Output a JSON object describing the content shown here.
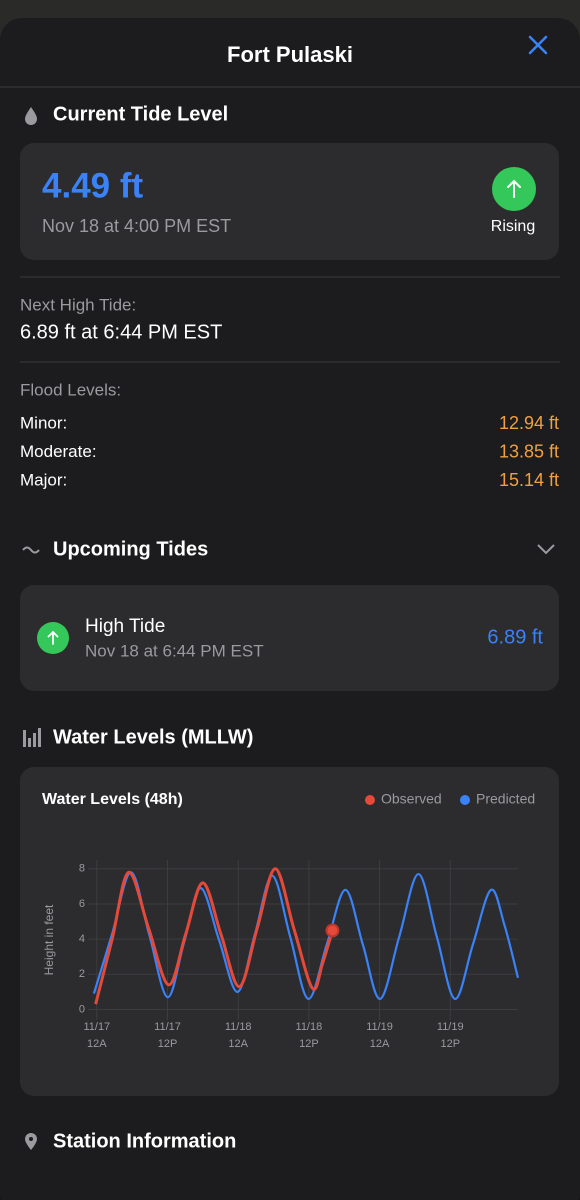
{
  "header": {
    "title": "Fort Pulaski"
  },
  "current": {
    "heading": "Current Tide Level",
    "level": "4.49 ft",
    "time": "Nov 18 at 4:00 PM EST",
    "trend": "Rising"
  },
  "next_high": {
    "label": "Next High Tide:",
    "value": "6.89 ft at 6:44 PM EST"
  },
  "flood": {
    "label": "Flood Levels:",
    "rows": [
      {
        "name": "Minor:",
        "level": "12.94 ft"
      },
      {
        "name": "Moderate:",
        "level": "13.85 ft"
      },
      {
        "name": "Major:",
        "level": "15.14 ft"
      }
    ]
  },
  "upcoming": {
    "heading": "Upcoming Tides",
    "tides": [
      {
        "type": "High Tide",
        "time": "Nov 18 at 6:44 PM EST",
        "height": "6.89 ft"
      }
    ]
  },
  "water_levels": {
    "heading": "Water Levels (MLLW)"
  },
  "chart_data": {
    "type": "line",
    "title": "Water Levels (48h)",
    "y_label": "Height in feet",
    "xlim": [
      -1.5,
      71.5
    ],
    "ylim": [
      -0.6,
      8.5
    ],
    "grid": true,
    "xticks": [
      {
        "value": 0,
        "label": "11/17\n12A"
      },
      {
        "value": 12,
        "label": "11/17\n12P"
      },
      {
        "value": 24,
        "label": "11/18\n12A"
      },
      {
        "value": 36,
        "label": "11/18\n12P"
      },
      {
        "value": 48,
        "label": "11/19\n12A"
      },
      {
        "value": 60,
        "label": "11/19\n12P"
      }
    ],
    "yticks": [
      0,
      2,
      4,
      6,
      8
    ],
    "series": [
      {
        "name": "Observed",
        "color": "#e5493a",
        "x": [
          -0.2,
          2.6,
          5.4,
          8.8,
          12.2,
          15.1,
          18.0,
          21.1,
          24.2,
          27.25,
          30.3,
          33.45,
          36.6,
          38.3,
          40
        ],
        "values": [
          0.3,
          4.0,
          7.8,
          4.6,
          1.4,
          4.3,
          7.2,
          4.25,
          1.3,
          4.65,
          8.0,
          4.6,
          1.2,
          2.6,
          4.49
        ]
      },
      {
        "name": "Predicted",
        "color": "#3a82f7",
        "x": [
          -0.5,
          2.6,
          5.8,
          8.9,
          12.0,
          14.8,
          17.6,
          20.75,
          23.9,
          26.85,
          29.8,
          32.85,
          35.9,
          39.05,
          42.2,
          45.15,
          48.1,
          51.35,
          54.6,
          57.7,
          60.8,
          63.85,
          66.9,
          69.2,
          71.5
        ],
        "values": [
          0.9,
          4.3,
          7.8,
          4.25,
          0.7,
          3.8,
          6.9,
          3.95,
          1.0,
          4.3,
          7.6,
          4.1,
          0.6,
          3.7,
          6.8,
          3.7,
          0.6,
          4.15,
          7.7,
          4.15,
          0.6,
          3.7,
          6.8,
          4.8,
          1.8
        ]
      }
    ]
  },
  "station": {
    "heading": "Station Information"
  }
}
